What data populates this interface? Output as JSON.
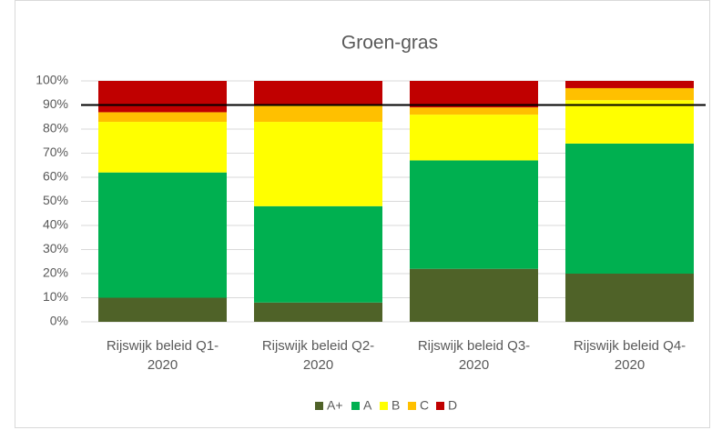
{
  "chart_data": {
    "type": "stacked_bar",
    "title": "Groen-gras",
    "categories": [
      "Rijswijk beleid Q1-2020",
      "Rijswijk beleid Q2-2020",
      "Rijswijk beleid Q3-2020",
      "Rijswijk beleid Q4-2020"
    ],
    "series": [
      {
        "name": "A+",
        "color": "#4f6228",
        "values": [
          10,
          8,
          22,
          20
        ]
      },
      {
        "name": "A",
        "color": "#00b050",
        "values": [
          52,
          40,
          45,
          54
        ]
      },
      {
        "name": "B",
        "color": "#ffff00",
        "values": [
          21,
          35,
          19,
          18
        ]
      },
      {
        "name": "C",
        "color": "#ffc000",
        "values": [
          4,
          7,
          3,
          5
        ]
      },
      {
        "name": "D",
        "color": "#c00000",
        "values": [
          13,
          10,
          11,
          3
        ]
      }
    ],
    "ylim": [
      0,
      100
    ],
    "yticks": [
      {
        "value": 0,
        "label": "0%"
      },
      {
        "value": 10,
        "label": "10%"
      },
      {
        "value": 20,
        "label": "20%"
      },
      {
        "value": 30,
        "label": "30%"
      },
      {
        "value": 40,
        "label": "40%"
      },
      {
        "value": 50,
        "label": "50%"
      },
      {
        "value": 60,
        "label": "60%"
      },
      {
        "value": 70,
        "label": "70%"
      },
      {
        "value": 80,
        "label": "80%"
      },
      {
        "value": 90,
        "label": "90%"
      },
      {
        "value": 100,
        "label": "100%"
      }
    ],
    "reference_line": 90,
    "grid": true,
    "legend": "bottom"
  }
}
